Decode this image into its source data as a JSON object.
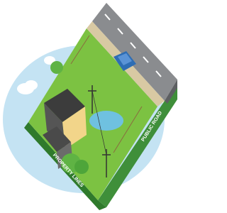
{
  "labels": {
    "side": "PUBLIC ROAD",
    "front": "PROPERTY LINES"
  }
}
